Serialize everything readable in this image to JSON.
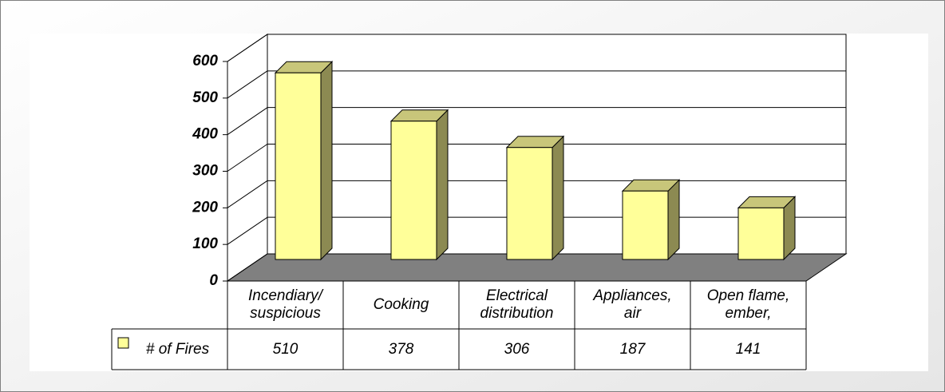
{
  "chart_data": {
    "type": "bar3d",
    "categories": [
      "Incendiary/\nsuspicious",
      "Cooking",
      "Electrical\ndistribution",
      "Appliances,\nair",
      "Open flame,\nember,"
    ],
    "series": [
      {
        "name": "# of Fires",
        "color": "#ffff99",
        "values": [
          510,
          378,
          306,
          187,
          141
        ]
      }
    ],
    "ylim": [
      0,
      600
    ],
    "yticks": [
      0,
      100,
      200,
      300,
      400,
      500,
      600
    ],
    "grid": true,
    "data_table": true
  }
}
